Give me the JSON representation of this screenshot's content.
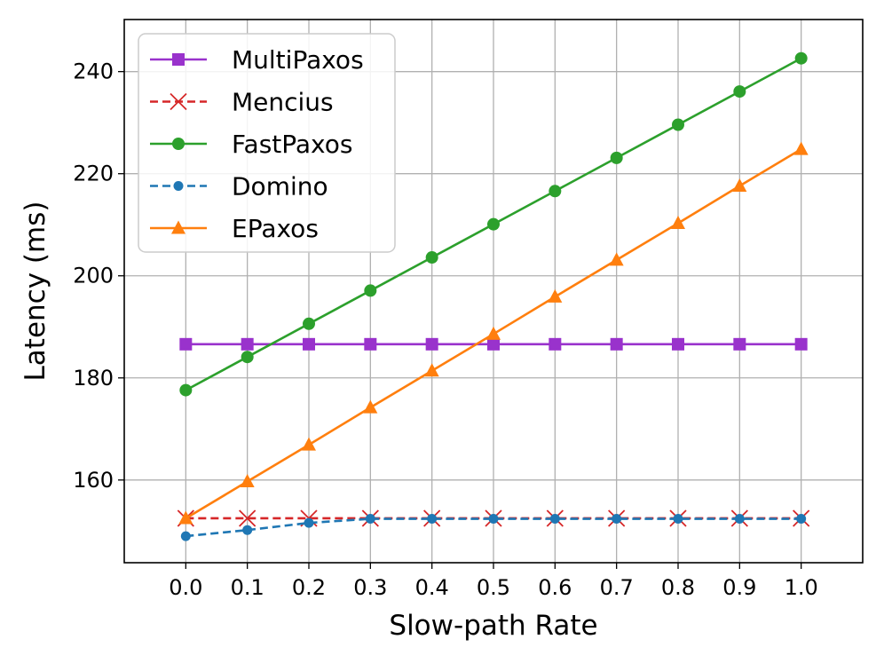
{
  "chart_data": {
    "type": "line",
    "xlabel": "Slow-path Rate",
    "ylabel": "Latency (ms)",
    "x": [
      0.0,
      0.1,
      0.2,
      0.3,
      0.4,
      0.5,
      0.6,
      0.7,
      0.8,
      0.9,
      1.0
    ],
    "x_tick_labels": [
      "0.0",
      "0.1",
      "0.2",
      "0.3",
      "0.4",
      "0.5",
      "0.6",
      "0.7",
      "0.8",
      "0.9",
      "1.0"
    ],
    "xlim": [
      -0.1,
      1.1
    ],
    "ylim": [
      143.8,
      250.2
    ],
    "y_ticks": [
      160,
      180,
      200,
      220,
      240
    ],
    "grid": true,
    "legend_position": "top-left",
    "series": [
      {
        "name": "MultiPaxos",
        "color": "#9932cc",
        "marker": "square",
        "dashed": false,
        "values": [
          186.6,
          186.6,
          186.6,
          186.6,
          186.6,
          186.6,
          186.6,
          186.6,
          186.6,
          186.6,
          186.6
        ]
      },
      {
        "name": "Mencius",
        "color": "#d62728",
        "marker": "x",
        "dashed": true,
        "values": [
          152.5,
          152.5,
          152.5,
          152.5,
          152.5,
          152.5,
          152.5,
          152.5,
          152.5,
          152.5,
          152.5
        ]
      },
      {
        "name": "FastPaxos",
        "color": "#2ca02c",
        "marker": "circle",
        "dashed": false,
        "values": [
          177.6,
          184.1,
          190.6,
          197.1,
          203.6,
          210.1,
          216.6,
          223.1,
          229.6,
          236.1,
          242.6
        ]
      },
      {
        "name": "Domino",
        "color": "#1f77b4",
        "marker": "circle-small",
        "dashed": true,
        "values": [
          149.0,
          150.2,
          151.6,
          152.4,
          152.4,
          152.4,
          152.4,
          152.4,
          152.4,
          152.4,
          152.4
        ]
      },
      {
        "name": "EPaxos",
        "color": "#ff7f0e",
        "marker": "triangle",
        "dashed": false,
        "values": [
          152.5,
          159.7,
          166.9,
          174.2,
          181.4,
          188.6,
          195.9,
          203.1,
          210.3,
          217.6,
          224.8
        ]
      }
    ]
  }
}
